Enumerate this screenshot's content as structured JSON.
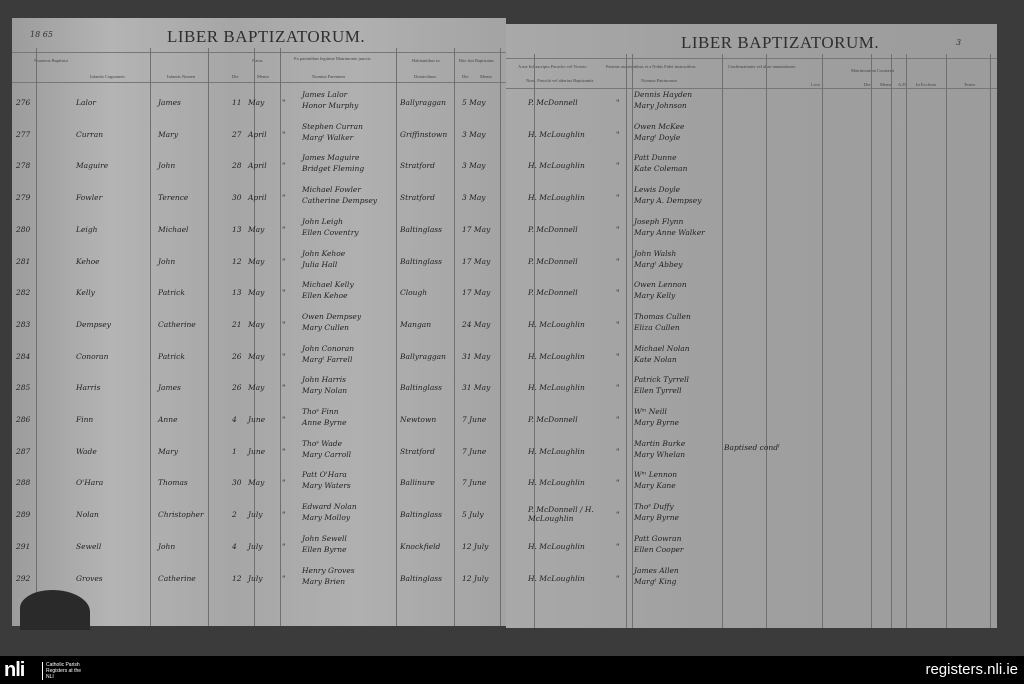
{
  "left_page": {
    "page_number": "18 65",
    "title": "LIBER BAPTIZATORUM.",
    "headers": {
      "number": "Numerus Baptismi",
      "surname": "Infantis Cognomen",
      "name": "Infantis Nomen",
      "born": "Natus",
      "born_day": "Die",
      "born_month": "Mense",
      "parents": "Ex parentibus legitime Matrimonio junctis",
      "parents_sub": "Nomina Parentum",
      "residence": "Habitantibus in",
      "residence_sub": "Domicilium",
      "baptized": "Rite fuit Baptizatus",
      "bap_day": "Die",
      "bap_month": "Mense"
    }
  },
  "right_page": {
    "page_number": "3",
    "title": "LIBER BAPTIZATORUM.",
    "headers": {
      "priest": "A me Infrascripto Parocho vel Vicario",
      "priest_sub": "Nom. Parochi vel alterius Baptizantis",
      "sponsors": "Patrinis assistentibus et a Nobis Fidei instructibus",
      "sponsors_sub": "Nomina Patrinorum",
      "notes": "Confirmationis vel aliae annotationes",
      "marriage": "Matrimonium Contraxit",
      "loco": "Loco",
      "die": "Die",
      "mense": "Mense",
      "ad": "A.D.",
      "ecclesia": "In Ecclesia",
      "testes": "Testes"
    }
  },
  "entries": [
    {
      "no": "276",
      "surname": "Lalor",
      "name": "James",
      "day": "11",
      "month": "May",
      "ditto": "\"",
      "father": "James Lalor",
      "mother": "Honor Murphy",
      "residence": "Ballyraggan",
      "bap": "5 May",
      "priest": "P. McDonnell",
      "sp1": "Dennis Hayden",
      "sp2": "Mary Johnson",
      "note": ""
    },
    {
      "no": "277",
      "surname": "Curran",
      "name": "Mary",
      "day": "27",
      "month": "April",
      "ditto": "\"",
      "father": "Stephen Curran",
      "mother": "Margᵗ Walker",
      "residence": "Griffinstown",
      "bap": "3 May",
      "priest": "H. McLoughlin",
      "sp1": "Owen McKee",
      "sp2": "Margᵗ Doyle",
      "note": ""
    },
    {
      "no": "278",
      "surname": "Maguire",
      "name": "John",
      "day": "28",
      "month": "April",
      "ditto": "\"",
      "father": "James Maguire",
      "mother": "Bridget Fleming",
      "residence": "Stratford",
      "bap": "3 May",
      "priest": "H. McLoughlin",
      "sp1": "Patt Dunne",
      "sp2": "Kate Coleman",
      "note": ""
    },
    {
      "no": "279",
      "surname": "Fowler",
      "name": "Terence",
      "day": "30",
      "month": "April",
      "ditto": "\"",
      "father": "Michael Fowler",
      "mother": "Catherine Dempsey",
      "residence": "Stratford",
      "bap": "3 May",
      "priest": "H. McLoughlin",
      "sp1": "Lewis Doyle",
      "sp2": "Mary A. Dempsey",
      "note": ""
    },
    {
      "no": "280",
      "surname": "Leigh",
      "name": "Michael",
      "day": "13",
      "month": "May",
      "ditto": "\"",
      "father": "John Leigh",
      "mother": "Ellen Coventry",
      "residence": "Baltinglass",
      "bap": "17 May",
      "priest": "P. McDonnell",
      "sp1": "Joseph Flynn",
      "sp2": "Mary Anne Walker",
      "note": ""
    },
    {
      "no": "281",
      "surname": "Kehoe",
      "name": "John",
      "day": "12",
      "month": "May",
      "ditto": "\"",
      "father": "John Kehoe",
      "mother": "Julia Hall",
      "residence": "Baltinglass",
      "bap": "17 May",
      "priest": "P. McDonnell",
      "sp1": "John Walsh",
      "sp2": "Margᵗ Abbey",
      "note": ""
    },
    {
      "no": "282",
      "surname": "Kelly",
      "name": "Patrick",
      "day": "13",
      "month": "May",
      "ditto": "\"",
      "father": "Michael Kelly",
      "mother": "Ellen Kehoe",
      "residence": "Clough",
      "bap": "17 May",
      "priest": "P. McDonnell",
      "sp1": "Owen Lennon",
      "sp2": "Mary Kelly",
      "note": ""
    },
    {
      "no": "283",
      "surname": "Dempsey",
      "name": "Catherine",
      "day": "21",
      "month": "May",
      "ditto": "\"",
      "father": "Owen Dempsey",
      "mother": "Mary Cullen",
      "residence": "Mangan",
      "bap": "24 May",
      "priest": "H. McLoughlin",
      "sp1": "Thomas Cullen",
      "sp2": "Eliza Cullen",
      "note": ""
    },
    {
      "no": "284",
      "surname": "Conoran",
      "name": "Patrick",
      "day": "26",
      "month": "May",
      "ditto": "\"",
      "father": "John Conoran",
      "mother": "Margᵗ Farrell",
      "residence": "Ballyraggan",
      "bap": "31 May",
      "priest": "H. McLoughlin",
      "sp1": "Michael Nolan",
      "sp2": "Kate Nolan",
      "note": ""
    },
    {
      "no": "285",
      "surname": "Harris",
      "name": "James",
      "day": "26",
      "month": "May",
      "ditto": "\"",
      "father": "John Harris",
      "mother": "Mary Nolan",
      "residence": "Baltinglass",
      "bap": "31 May",
      "priest": "H. McLoughlin",
      "sp1": "Patrick Tyrrell",
      "sp2": "Ellen Tyrrell",
      "note": ""
    },
    {
      "no": "286",
      "surname": "Finn",
      "name": "Anne",
      "day": "4",
      "month": "June",
      "ditto": "\"",
      "father": "Thoˢ Finn",
      "mother": "Anne Byrne",
      "residence": "Newtown",
      "bap": "7 June",
      "priest": "P. McDonnell",
      "sp1": "Wᵐ Neill",
      "sp2": "Mary Byrne",
      "note": ""
    },
    {
      "no": "287",
      "surname": "Wade",
      "name": "Mary",
      "day": "1",
      "month": "June",
      "ditto": "\"",
      "father": "Thoˢ Wade",
      "mother": "Mary Carroll",
      "residence": "Stratford",
      "bap": "7 June",
      "priest": "H. McLoughlin",
      "sp1": "Martin Burke",
      "sp2": "Mary Whelan",
      "note": "Baptised condˡ"
    },
    {
      "no": "288",
      "surname": "O'Hara",
      "name": "Thomas",
      "day": "30",
      "month": "May",
      "ditto": "\"",
      "father": "Patt O'Hara",
      "mother": "Mary Waters",
      "residence": "Ballinure",
      "bap": "7 June",
      "priest": "H. McLoughlin",
      "sp1": "Wᵐ Lennon",
      "sp2": "Mary Kane",
      "note": ""
    },
    {
      "no": "289",
      "surname": "Nolan",
      "name": "Christopher",
      "day": "2",
      "month": "July",
      "ditto": "\"",
      "father": "Edward Nolan",
      "mother": "Mary Molloy",
      "residence": "Baltinglass",
      "bap": "5 July",
      "priest": "P. McDonnell / H. McLoughlin",
      "sp1": "Thoˢ Duffy",
      "sp2": "Mary Byrne",
      "note": ""
    },
    {
      "no": "291",
      "surname": "Sewell",
      "name": "John",
      "day": "4",
      "month": "July",
      "ditto": "\"",
      "father": "John Sewell",
      "mother": "Ellen Byrne",
      "residence": "Knockfield",
      "bap": "12 July",
      "priest": "H. McLoughlin",
      "sp1": "Patt Gowran",
      "sp2": "Ellen Cooper",
      "note": ""
    },
    {
      "no": "292",
      "surname": "Groves",
      "name": "Catherine",
      "day": "12",
      "month": "July",
      "ditto": "\"",
      "father": "Henry Groves",
      "mother": "Mary Brien",
      "residence": "Baltinglass",
      "bap": "12 July",
      "priest": "H. McLoughlin",
      "sp1": "James Allen",
      "sp2": "Margᵗ King",
      "note": ""
    }
  ],
  "footer": {
    "logo": "nli",
    "logo_text": "Catholic Parish Registers at the NLI",
    "site": "registers.nli.ie"
  }
}
